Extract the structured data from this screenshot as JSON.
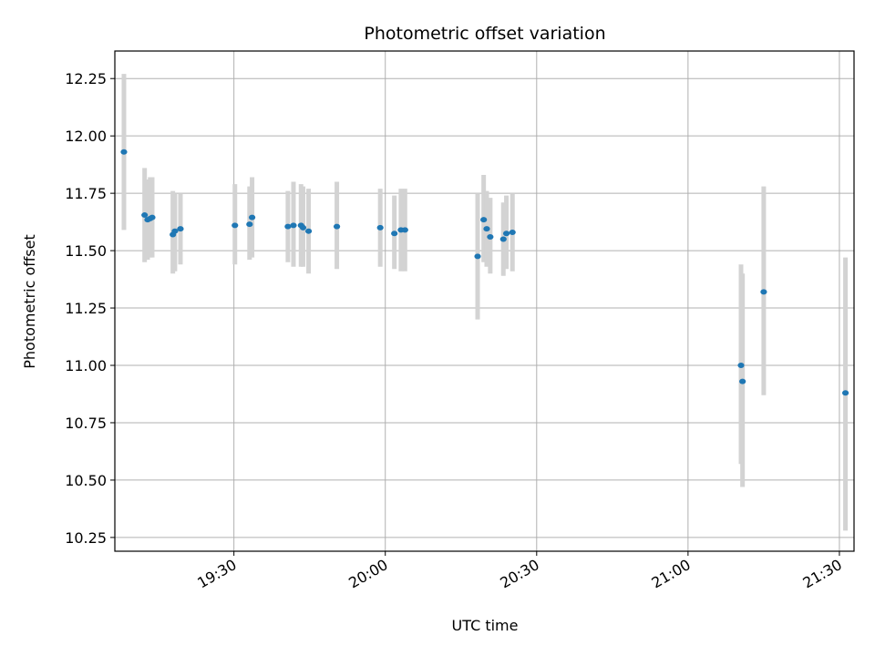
{
  "chart_data": {
    "type": "scatter",
    "title": "Photometric offset variation",
    "xlabel": "UTC time",
    "ylabel": "Photometric offset",
    "grid": true,
    "x_ticks": [
      "19:30",
      "20:00",
      "20:30",
      "21:00",
      "21:30"
    ],
    "x_tick_minutes": [
      1170,
      1200,
      1230,
      1260,
      1290
    ],
    "y_ticks": [
      10.25,
      10.5,
      10.75,
      11.0,
      11.25,
      11.5,
      11.75,
      12.0,
      12.25
    ],
    "y_tick_labels": [
      "10.25",
      "10.50",
      "10.75",
      "11.00",
      "11.25",
      "11.50",
      "11.75",
      "12.00",
      "12.25"
    ],
    "xlim_minutes": [
      1146.4,
      1292.9
    ],
    "ylim": [
      10.19,
      12.37
    ],
    "marker_color": "#1f77b4",
    "errorbar_color": "#d3d3d3",
    "points": [
      {
        "t": 1148.2,
        "y": 11.93,
        "lo": 11.59,
        "hi": 12.27
      },
      {
        "t": 1152.3,
        "y": 11.655,
        "lo": 11.45,
        "hi": 11.86
      },
      {
        "t": 1152.9,
        "y": 11.635,
        "lo": 11.46,
        "hi": 11.81
      },
      {
        "t": 1153.4,
        "y": 11.64,
        "lo": 11.47,
        "hi": 11.82
      },
      {
        "t": 1153.8,
        "y": 11.645,
        "lo": 11.47,
        "hi": 11.82
      },
      {
        "t": 1157.9,
        "y": 11.57,
        "lo": 11.4,
        "hi": 11.76
      },
      {
        "t": 1158.3,
        "y": 11.585,
        "lo": 11.41,
        "hi": 11.75
      },
      {
        "t": 1159.4,
        "y": 11.595,
        "lo": 11.44,
        "hi": 11.75
      },
      {
        "t": 1170.2,
        "y": 11.61,
        "lo": 11.44,
        "hi": 11.79
      },
      {
        "t": 1173.1,
        "y": 11.615,
        "lo": 11.46,
        "hi": 11.78
      },
      {
        "t": 1173.6,
        "y": 11.645,
        "lo": 11.47,
        "hi": 11.82
      },
      {
        "t": 1180.7,
        "y": 11.605,
        "lo": 11.45,
        "hi": 11.76
      },
      {
        "t": 1181.8,
        "y": 11.61,
        "lo": 11.43,
        "hi": 11.8
      },
      {
        "t": 1183.3,
        "y": 11.61,
        "lo": 11.43,
        "hi": 11.79
      },
      {
        "t": 1183.7,
        "y": 11.6,
        "lo": 11.43,
        "hi": 11.78
      },
      {
        "t": 1184.8,
        "y": 11.585,
        "lo": 11.4,
        "hi": 11.77
      },
      {
        "t": 1190.4,
        "y": 11.605,
        "lo": 11.42,
        "hi": 11.8
      },
      {
        "t": 1199.0,
        "y": 11.6,
        "lo": 11.43,
        "hi": 11.77
      },
      {
        "t": 1201.8,
        "y": 11.575,
        "lo": 11.42,
        "hi": 11.74
      },
      {
        "t": 1203.1,
        "y": 11.59,
        "lo": 11.41,
        "hi": 11.77
      },
      {
        "t": 1203.9,
        "y": 11.59,
        "lo": 11.41,
        "hi": 11.77
      },
      {
        "t": 1218.3,
        "y": 11.475,
        "lo": 11.2,
        "hi": 11.75
      },
      {
        "t": 1219.5,
        "y": 11.635,
        "lo": 11.45,
        "hi": 11.83
      },
      {
        "t": 1220.1,
        "y": 11.595,
        "lo": 11.43,
        "hi": 11.76
      },
      {
        "t": 1220.8,
        "y": 11.56,
        "lo": 11.4,
        "hi": 11.73
      },
      {
        "t": 1223.4,
        "y": 11.55,
        "lo": 11.39,
        "hi": 11.71
      },
      {
        "t": 1224.0,
        "y": 11.575,
        "lo": 11.42,
        "hi": 11.74
      },
      {
        "t": 1225.2,
        "y": 11.58,
        "lo": 11.41,
        "hi": 11.75
      },
      {
        "t": 1270.5,
        "y": 11.0,
        "lo": 10.57,
        "hi": 11.44
      },
      {
        "t": 1270.8,
        "y": 10.93,
        "lo": 10.47,
        "hi": 11.4
      },
      {
        "t": 1275.0,
        "y": 11.32,
        "lo": 10.87,
        "hi": 11.78
      },
      {
        "t": 1291.2,
        "y": 10.88,
        "lo": 10.28,
        "hi": 11.47
      }
    ]
  }
}
